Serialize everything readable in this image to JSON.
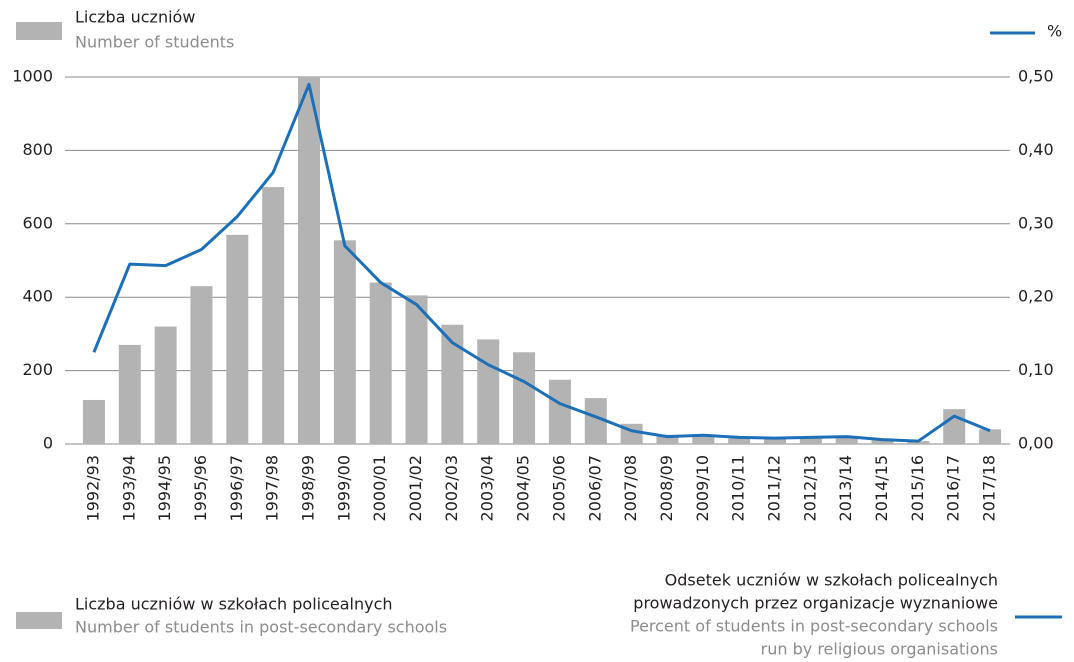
{
  "chart_data": {
    "type": "bar_line",
    "ylabel": [
      "Liczba uczniów",
      "Number of students"
    ],
    "y2label": "%",
    "categories": [
      "1992/93",
      "1993/94",
      "1994/95",
      "1995/96",
      "1996/97",
      "1997/98",
      "1998/99",
      "1999/00",
      "2000/01",
      "2001/02",
      "2002/03",
      "2003/04",
      "2004/05",
      "2005/06",
      "2006/07",
      "2007/08",
      "2008/09",
      "2009/10",
      "2010/11",
      "2011/12",
      "2012/13",
      "2013/14",
      "2014/15",
      "2015/16",
      "2016/17",
      "2017/18"
    ],
    "series": [
      {
        "name": [
          "Liczba uczniów w szkołach policealnych"
        ],
        "name_en": [
          "Number of students in post-secondary schools"
        ],
        "type": "bar",
        "color": "#b3b3b3",
        "values": [
          120,
          270,
          320,
          430,
          570,
          700,
          1000,
          555,
          440,
          405,
          325,
          285,
          250,
          175,
          125,
          55,
          25,
          20,
          15,
          15,
          20,
          20,
          10,
          8,
          95,
          40
        ]
      },
      {
        "name": [
          "Odsetek uczniów w szkołach policealnych",
          "prowadzonych przez organizacje wyznaniowe"
        ],
        "name_en": [
          "Percent of students in post-secondary schools",
          "run by religious organisations"
        ],
        "type": "line",
        "axis": "y2",
        "color": "#1d70b7",
        "values": [
          0.125,
          0.245,
          0.243,
          0.265,
          0.31,
          0.37,
          0.49,
          0.27,
          0.22,
          0.19,
          0.138,
          0.108,
          0.085,
          0.055,
          0.037,
          0.018,
          0.01,
          0.012,
          0.009,
          0.008,
          0.009,
          0.01,
          0.006,
          0.004,
          0.038,
          0.018
        ]
      }
    ],
    "ylim": [
      0,
      1000
    ],
    "yticks": [
      0,
      200,
      400,
      600,
      800,
      1000
    ],
    "y2lim": [
      0,
      0.5
    ],
    "y2ticks": [
      {
        "value": 0,
        "label": "0,00"
      },
      {
        "value": 0.1,
        "label": "0,10"
      },
      {
        "value": 0.2,
        "label": "0,20"
      },
      {
        "value": 0.3,
        "label": "0,30"
      },
      {
        "value": 0.4,
        "label": "0,40"
      },
      {
        "value": 0.5,
        "label": "0,50"
      }
    ],
    "grid": true
  }
}
